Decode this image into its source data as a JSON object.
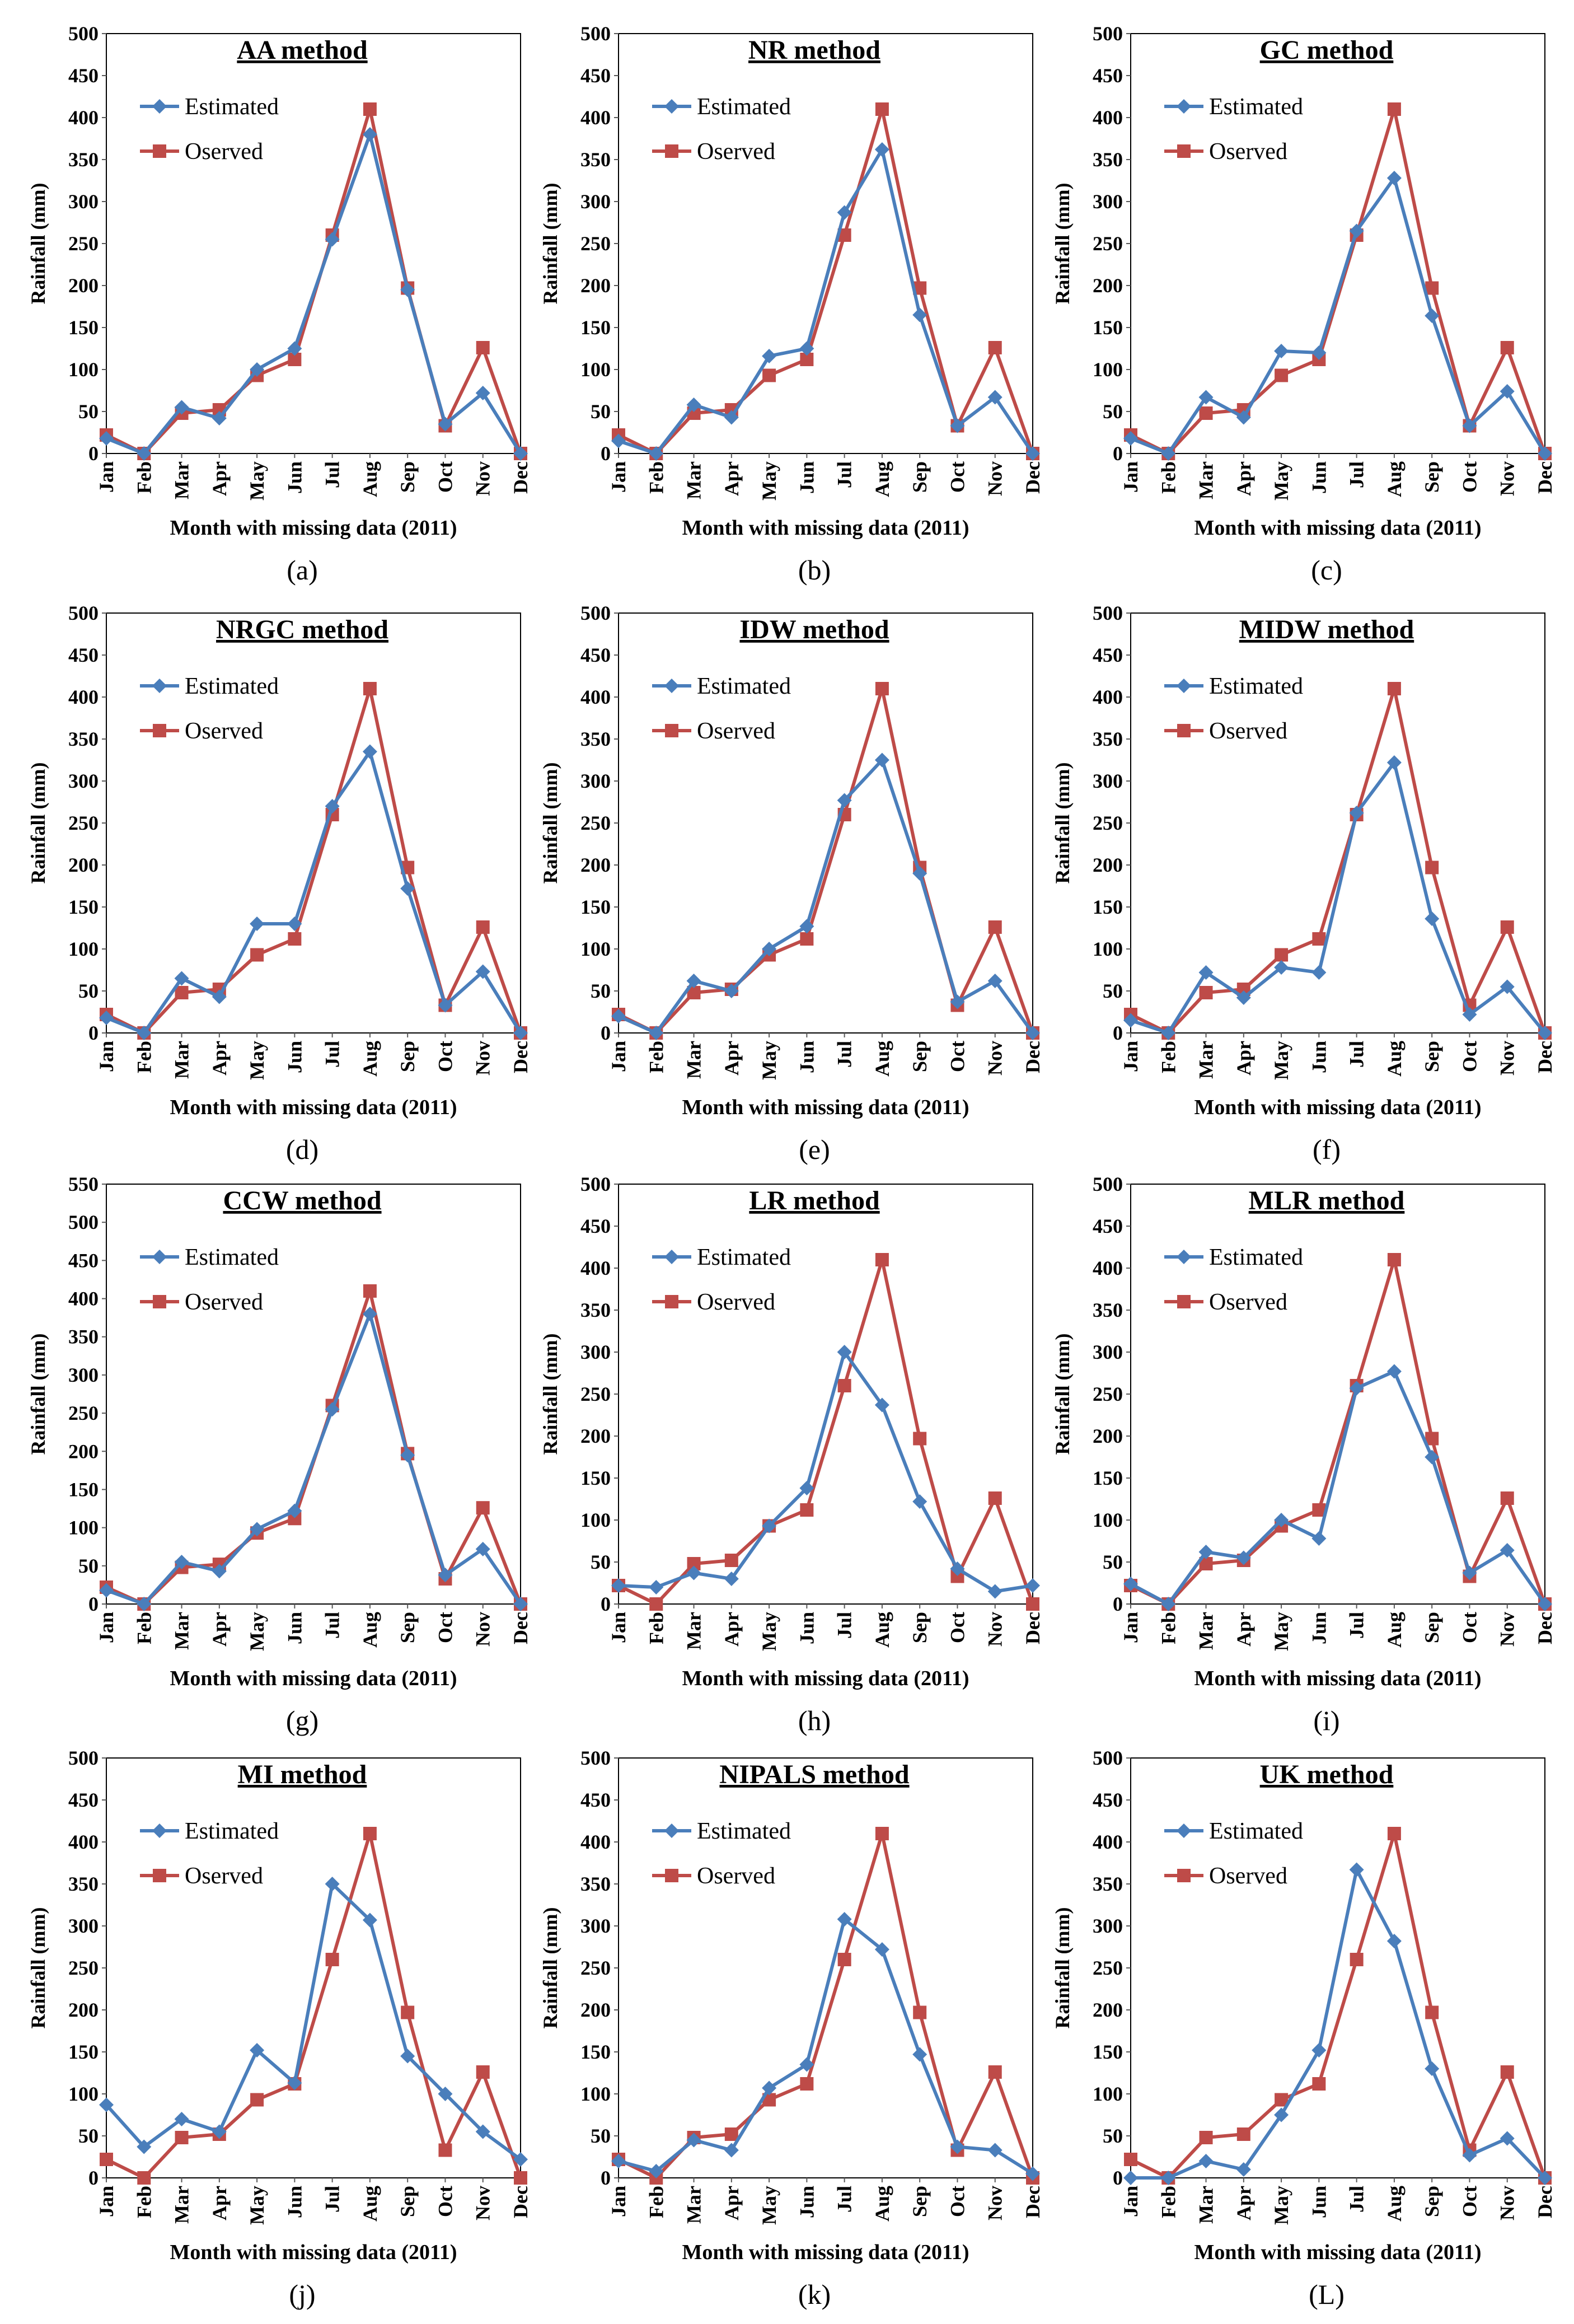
{
  "colors": {
    "estimated": "#4A7EBB",
    "observed": "#BE4B48",
    "axis": "#595959",
    "frame": "#000000"
  },
  "chart_data": [
    {
      "type": "line",
      "title": "AA method",
      "subfigure": "(a)",
      "xlabel": "Month with missing data (2011)",
      "ylabel": "Rainfall (mm)",
      "ylim": [
        0,
        500
      ],
      "yticks": [
        0,
        50,
        100,
        150,
        200,
        250,
        300,
        350,
        400,
        450,
        500
      ],
      "categories": [
        "Jan",
        "Feb",
        "Mar",
        "Apr",
        "May",
        "Jun",
        "Jul",
        "Aug",
        "Sep",
        "Oct",
        "Nov",
        "Dec"
      ],
      "legend": "top-left",
      "grid": false,
      "series": [
        {
          "name": "Estimated",
          "marker": "diamond",
          "values": [
            18,
            0,
            55,
            42,
            100,
            125,
            255,
            380,
            195,
            35,
            72,
            0
          ]
        },
        {
          "name": "Oserved",
          "marker": "square",
          "values": [
            22,
            0,
            48,
            52,
            93,
            112,
            260,
            410,
            197,
            33,
            126,
            0
          ]
        }
      ]
    },
    {
      "type": "line",
      "title": "NR method",
      "subfigure": "(b)",
      "xlabel": "Month with missing data (2011)",
      "ylabel": "Rainfall (mm)",
      "ylim": [
        0,
        500
      ],
      "yticks": [
        0,
        50,
        100,
        150,
        200,
        250,
        300,
        350,
        400,
        450,
        500
      ],
      "categories": [
        "Jan",
        "Feb",
        "Mar",
        "Apr",
        "May",
        "Jun",
        "Jul",
        "Aug",
        "Sep",
        "Oct",
        "Nov",
        "Dec"
      ],
      "legend": "top-left",
      "grid": false,
      "series": [
        {
          "name": "Estimated",
          "marker": "diamond",
          "values": [
            15,
            0,
            58,
            43,
            116,
            125,
            287,
            362,
            165,
            33,
            67,
            0
          ]
        },
        {
          "name": "Oserved",
          "marker": "square",
          "values": [
            22,
            0,
            48,
            52,
            93,
            112,
            260,
            410,
            197,
            33,
            126,
            0
          ]
        }
      ]
    },
    {
      "type": "line",
      "title": "GC method",
      "subfigure": "(c)",
      "xlabel": "Month with missing data (2011)",
      "ylabel": "Rainfall (mm)",
      "ylim": [
        0,
        500
      ],
      "yticks": [
        0,
        50,
        100,
        150,
        200,
        250,
        300,
        350,
        400,
        450,
        500
      ],
      "categories": [
        "Jan",
        "Feb",
        "Mar",
        "Apr",
        "May",
        "Jun",
        "Jul",
        "Aug",
        "Sep",
        "Oct",
        "Nov",
        "Dec"
      ],
      "legend": "top-left",
      "grid": false,
      "series": [
        {
          "name": "Estimated",
          "marker": "diamond",
          "values": [
            18,
            0,
            67,
            43,
            122,
            120,
            265,
            328,
            164,
            33,
            74,
            0
          ]
        },
        {
          "name": "Oserved",
          "marker": "square",
          "values": [
            22,
            0,
            48,
            52,
            93,
            112,
            260,
            410,
            197,
            33,
            126,
            0
          ]
        }
      ]
    },
    {
      "type": "line",
      "title": "NRGC method",
      "subfigure": "(d)",
      "xlabel": "Month with missing data (2011)",
      "ylabel": "Rainfall (mm)",
      "ylim": [
        0,
        500
      ],
      "yticks": [
        0,
        50,
        100,
        150,
        200,
        250,
        300,
        350,
        400,
        450,
        500
      ],
      "categories": [
        "Jan",
        "Feb",
        "Mar",
        "Apr",
        "May",
        "Jun",
        "Jul",
        "Aug",
        "Sep",
        "Oct",
        "Nov",
        "Dec"
      ],
      "legend": "top-left",
      "grid": false,
      "series": [
        {
          "name": "Estimated",
          "marker": "diamond",
          "values": [
            18,
            0,
            65,
            43,
            130,
            130,
            270,
            335,
            172,
            33,
            73,
            0
          ]
        },
        {
          "name": "Oserved",
          "marker": "square",
          "values": [
            22,
            0,
            48,
            52,
            93,
            112,
            260,
            410,
            197,
            33,
            126,
            0
          ]
        }
      ]
    },
    {
      "type": "line",
      "title": "IDW method",
      "subfigure": "(e)",
      "xlabel": "Month with missing data (2011)",
      "ylabel": "Rainfall (mm)",
      "ylim": [
        0,
        500
      ],
      "yticks": [
        0,
        50,
        100,
        150,
        200,
        250,
        300,
        350,
        400,
        450,
        500
      ],
      "categories": [
        "Jan",
        "Feb",
        "Mar",
        "Apr",
        "May",
        "Jun",
        "Jul",
        "Aug",
        "Sep",
        "Oct",
        "Nov",
        "Dec"
      ],
      "legend": "top-left",
      "grid": false,
      "series": [
        {
          "name": "Estimated",
          "marker": "diamond",
          "values": [
            20,
            0,
            62,
            50,
            100,
            127,
            277,
            325,
            190,
            37,
            62,
            0
          ]
        },
        {
          "name": "Oserved",
          "marker": "square",
          "values": [
            22,
            0,
            48,
            52,
            93,
            112,
            260,
            410,
            197,
            33,
            126,
            0
          ]
        }
      ]
    },
    {
      "type": "line",
      "title": "MIDW method",
      "subfigure": "(f)",
      "xlabel": "Month with missing data (2011)",
      "ylabel": "Rainfall (mm)",
      "ylim": [
        0,
        500
      ],
      "yticks": [
        0,
        50,
        100,
        150,
        200,
        250,
        300,
        350,
        400,
        450,
        500
      ],
      "categories": [
        "Jan",
        "Feb",
        "Mar",
        "Apr",
        "May",
        "Jun",
        "Jul",
        "Aug",
        "Sep",
        "Oct",
        "Nov",
        "Dec"
      ],
      "legend": "top-left",
      "grid": false,
      "series": [
        {
          "name": "Estimated",
          "marker": "diamond",
          "values": [
            15,
            0,
            72,
            42,
            78,
            72,
            262,
            322,
            136,
            22,
            55,
            0
          ]
        },
        {
          "name": "Oserved",
          "marker": "square",
          "values": [
            22,
            0,
            48,
            52,
            93,
            112,
            260,
            410,
            197,
            33,
            126,
            0
          ]
        }
      ]
    },
    {
      "type": "line",
      "title": "CCW method",
      "subfigure": "(g)",
      "xlabel": "Month with missing data (2011)",
      "ylabel": "Rainfall (mm)",
      "ylim": [
        0,
        550
      ],
      "yticks": [
        0,
        50,
        100,
        150,
        200,
        250,
        300,
        350,
        400,
        450,
        500,
        550
      ],
      "categories": [
        "Jan",
        "Feb",
        "Mar",
        "Apr",
        "May",
        "Jun",
        "Jul",
        "Aug",
        "Sep",
        "Oct",
        "Nov",
        "Dec"
      ],
      "legend": "top-left",
      "grid": false,
      "series": [
        {
          "name": "Estimated",
          "marker": "diamond",
          "values": [
            18,
            0,
            55,
            43,
            98,
            122,
            255,
            380,
            195,
            38,
            72,
            0
          ]
        },
        {
          "name": "Oserved",
          "marker": "square",
          "values": [
            22,
            0,
            48,
            52,
            93,
            112,
            260,
            410,
            197,
            33,
            126,
            0
          ]
        }
      ]
    },
    {
      "type": "line",
      "title": "LR method",
      "subfigure": "(h)",
      "xlabel": "Month with missing data (2011)",
      "ylabel": "Rainfall (mm)",
      "ylim": [
        0,
        500
      ],
      "yticks": [
        0,
        50,
        100,
        150,
        200,
        250,
        300,
        350,
        400,
        450,
        500
      ],
      "categories": [
        "Jan",
        "Feb",
        "Mar",
        "Apr",
        "May",
        "Jun",
        "Jul",
        "Aug",
        "Sep",
        "Oct",
        "Nov",
        "Dec"
      ],
      "legend": "top-left",
      "grid": false,
      "series": [
        {
          "name": "Estimated",
          "marker": "diamond",
          "values": [
            22,
            20,
            37,
            30,
            93,
            138,
            300,
            237,
            122,
            42,
            15,
            22
          ]
        },
        {
          "name": "Oserved",
          "marker": "square",
          "values": [
            22,
            0,
            48,
            52,
            93,
            112,
            260,
            410,
            197,
            33,
            126,
            0
          ]
        }
      ]
    },
    {
      "type": "line",
      "title": "MLR method",
      "subfigure": "(i)",
      "xlabel": "Month with missing data (2011)",
      "ylabel": "Rainfall (mm)",
      "ylim": [
        0,
        500
      ],
      "yticks": [
        0,
        50,
        100,
        150,
        200,
        250,
        300,
        350,
        400,
        450,
        500
      ],
      "categories": [
        "Jan",
        "Feb",
        "Mar",
        "Apr",
        "May",
        "Jun",
        "Jul",
        "Aug",
        "Sep",
        "Oct",
        "Nov",
        "Dec"
      ],
      "legend": "top-left",
      "grid": false,
      "series": [
        {
          "name": "Estimated",
          "marker": "diamond",
          "values": [
            24,
            0,
            62,
            55,
            100,
            78,
            257,
            277,
            175,
            37,
            64,
            0
          ]
        },
        {
          "name": "Oserved",
          "marker": "square",
          "values": [
            22,
            0,
            48,
            52,
            93,
            112,
            260,
            410,
            197,
            33,
            126,
            0
          ]
        }
      ]
    },
    {
      "type": "line",
      "title": "MI method",
      "subfigure": "(j)",
      "xlabel": "Month with missing data (2011)",
      "ylabel": "Rainfall (mm)",
      "ylim": [
        0,
        500
      ],
      "yticks": [
        0,
        50,
        100,
        150,
        200,
        250,
        300,
        350,
        400,
        450,
        500
      ],
      "categories": [
        "Jan",
        "Feb",
        "Mar",
        "Apr",
        "May",
        "Jun",
        "Jul",
        "Aug",
        "Sep",
        "Oct",
        "Nov",
        "Dec"
      ],
      "legend": "top-left",
      "grid": false,
      "series": [
        {
          "name": "Estimated",
          "marker": "diamond",
          "values": [
            87,
            37,
            70,
            55,
            152,
            113,
            350,
            307,
            145,
            100,
            55,
            22
          ]
        },
        {
          "name": "Oserved",
          "marker": "square",
          "values": [
            22,
            0,
            48,
            52,
            93,
            112,
            260,
            410,
            197,
            33,
            126,
            0
          ]
        }
      ]
    },
    {
      "type": "line",
      "title": "NIPALS method",
      "subfigure": "(k)",
      "xlabel": "Month with missing data (2011)",
      "ylabel": "Rainfall (mm)",
      "ylim": [
        0,
        500
      ],
      "yticks": [
        0,
        50,
        100,
        150,
        200,
        250,
        300,
        350,
        400,
        450,
        500
      ],
      "categories": [
        "Jan",
        "Feb",
        "Mar",
        "Apr",
        "May",
        "Jun",
        "Jul",
        "Aug",
        "Sep",
        "Oct",
        "Nov",
        "Dec"
      ],
      "legend": "top-left",
      "grid": false,
      "series": [
        {
          "name": "Estimated",
          "marker": "diamond",
          "values": [
            20,
            8,
            45,
            33,
            107,
            135,
            308,
            272,
            147,
            37,
            33,
            5
          ]
        },
        {
          "name": "Oserved",
          "marker": "square",
          "values": [
            22,
            0,
            48,
            52,
            93,
            112,
            260,
            410,
            197,
            33,
            126,
            0
          ]
        }
      ]
    },
    {
      "type": "line",
      "title": "UK method",
      "subfigure": "(L)",
      "xlabel": "Month with missing data (2011)",
      "ylabel": "Rainfall (mm)",
      "ylim": [
        0,
        500
      ],
      "yticks": [
        0,
        50,
        100,
        150,
        200,
        250,
        300,
        350,
        400,
        450,
        500
      ],
      "categories": [
        "Jan",
        "Feb",
        "Mar",
        "Apr",
        "May",
        "Jun",
        "Jul",
        "Aug",
        "Sep",
        "Oct",
        "Nov",
        "Dec"
      ],
      "legend": "top-left",
      "grid": false,
      "series": [
        {
          "name": "Estimated",
          "marker": "diamond",
          "values": [
            0,
            0,
            20,
            10,
            75,
            152,
            367,
            282,
            130,
            27,
            47,
            0
          ]
        },
        {
          "name": "Oserved",
          "marker": "square",
          "values": [
            22,
            0,
            48,
            52,
            93,
            112,
            260,
            410,
            197,
            33,
            126,
            0
          ]
        }
      ]
    }
  ]
}
